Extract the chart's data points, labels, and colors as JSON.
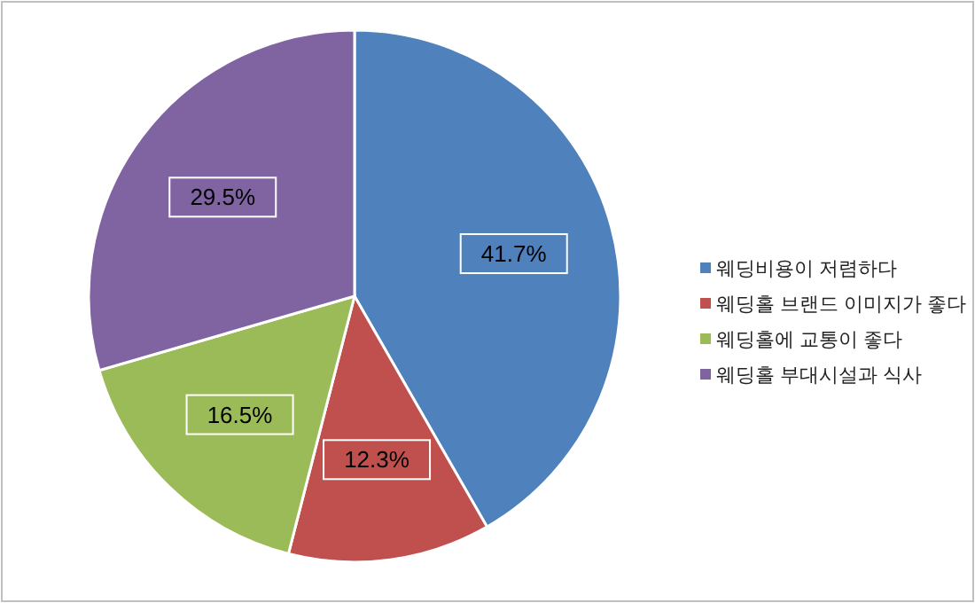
{
  "chart_data": {
    "type": "pie",
    "categories": [
      "웨딩비용이 저렴하다",
      "웨딩홀 브랜드 이미지가 좋다",
      "웨딩홀에 교통이 좋다",
      "웨딩홀 부대시설과 식사"
    ],
    "values": [
      41.7,
      12.3,
      16.5,
      29.5
    ],
    "colors": [
      "#4f81bd",
      "#c0504d",
      "#9bbb59",
      "#8064a2"
    ],
    "value_labels": [
      "41.7%",
      "12.3%",
      "16.5%",
      "29.5%"
    ],
    "legend": "right"
  }
}
